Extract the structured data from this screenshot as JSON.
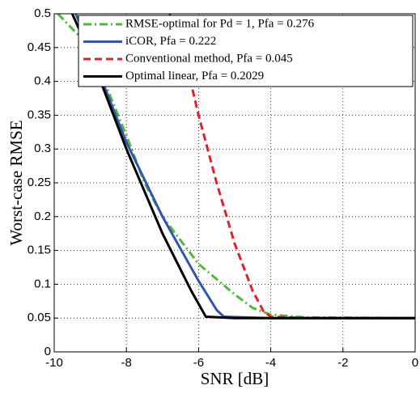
{
  "chart_data": {
    "type": "line",
    "x_label": "SNR [dB]",
    "y_label": "Worst-case RMSE",
    "xlim": [
      -10,
      0
    ],
    "ylim": [
      0,
      0.5
    ],
    "xticks": [
      -10,
      -8,
      -6,
      -4,
      -2,
      0
    ],
    "yticks": [
      0,
      0.05,
      0.1,
      0.15,
      0.2,
      0.25,
      0.3,
      0.35,
      0.4,
      0.45,
      0.5
    ],
    "grid": true,
    "legend": "top-right",
    "series": [
      {
        "name": "RMSE-optimal for Pd = 1, Pfa = 0.276",
        "color": "#4dbb3a",
        "style": "dash-dot",
        "x": [
          -9.9,
          -9,
          -8,
          -7.5,
          -7,
          -6,
          -5,
          -4.5,
          -4,
          -3,
          0
        ],
        "values": [
          0.5,
          0.45,
          0.32,
          0.25,
          0.2,
          0.13,
          0.085,
          0.065,
          0.055,
          0.051,
          0.05
        ]
      },
      {
        "name": "iCOR, Pfa = 0.222",
        "color": "#3355aa",
        "style": "solid",
        "x": [
          -9.4,
          -9,
          -8,
          -7,
          -6,
          -5.5,
          -5.3,
          -4,
          0
        ],
        "values": [
          0.5,
          0.445,
          0.31,
          0.2,
          0.105,
          0.062,
          0.052,
          0.05,
          0.05
        ]
      },
      {
        "name": "Conventional method, Pfa = 0.045",
        "color": "#e0202a",
        "style": "dash",
        "x": [
          -6.8,
          -6.4,
          -6,
          -5.5,
          -5,
          -4.5,
          -4.2,
          -4,
          -3,
          0
        ],
        "values": [
          0.5,
          0.44,
          0.35,
          0.25,
          0.16,
          0.09,
          0.06,
          0.052,
          0.05,
          0.05
        ]
      },
      {
        "name": "Optimal linear, Pfa = 0.2029",
        "color": "#000000",
        "style": "solid",
        "x": [
          -9.5,
          -9,
          -8,
          -7,
          -6.2,
          -5.8,
          -5,
          0
        ],
        "values": [
          0.5,
          0.44,
          0.3,
          0.175,
          0.09,
          0.052,
          0.05,
          0.05
        ]
      }
    ]
  }
}
